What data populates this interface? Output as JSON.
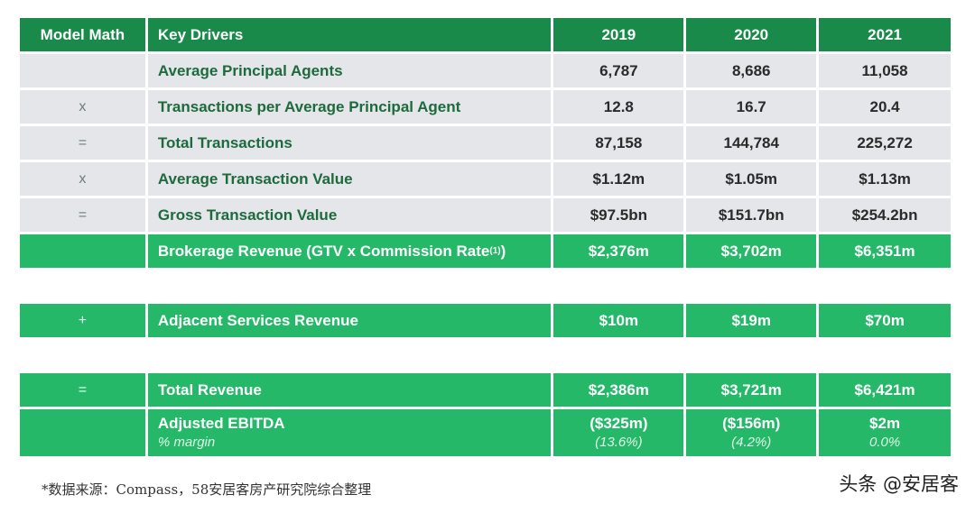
{
  "table": {
    "header": {
      "op": "Model Math",
      "label": "Key Drivers",
      "years": [
        "2019",
        "2020",
        "2021"
      ]
    },
    "rows": [
      {
        "op": "",
        "label": "Average Principal Agents",
        "values": [
          "6,787",
          "8,686",
          "11,058"
        ]
      },
      {
        "op": "x",
        "label": "Transactions per Average Principal Agent",
        "values": [
          "12.8",
          "16.7",
          "20.4"
        ]
      },
      {
        "op": "=",
        "label": "Total Transactions",
        "values": [
          "87,158",
          "144,784",
          "225,272"
        ]
      },
      {
        "op": "x",
        "label": "Average Transaction Value",
        "values": [
          "$1.12m",
          "$1.05m",
          "$1.13m"
        ]
      },
      {
        "op": "=",
        "label": "Gross Transaction Value",
        "values": [
          "$97.5bn",
          "$151.7bn",
          "$254.2bn"
        ]
      },
      {
        "op": "",
        "label": "Brokerage Revenue (GTV x Commission Rate",
        "sup": "(1)",
        "label_close": ")",
        "values": [
          "$2,376m",
          "$3,702m",
          "$6,351m"
        ]
      },
      {
        "op": "+",
        "label": "Adjacent Services Revenue",
        "values": [
          "$10m",
          "$19m",
          "$70m"
        ]
      },
      {
        "op": "=",
        "label": "Total Revenue",
        "values": [
          "$2,386m",
          "$3,721m",
          "$6,421m"
        ]
      },
      {
        "op": "",
        "label": "Adjusted EBITDA",
        "sublabel": "% margin",
        "values": [
          "($325m)",
          "($156m)",
          "$2m"
        ],
        "subvalues": [
          "(13.6%)",
          "(4.2%)",
          "0.0%"
        ]
      }
    ]
  },
  "footnote": "*数据来源：Compass，58安居客房产研究院综合整理",
  "watermark": "头条 @安居客",
  "colors": {
    "header_green": "#1a8a4a",
    "row_green": "#25b868",
    "row_gray": "#e4e6e9",
    "label_text": "#1d6a3c"
  }
}
